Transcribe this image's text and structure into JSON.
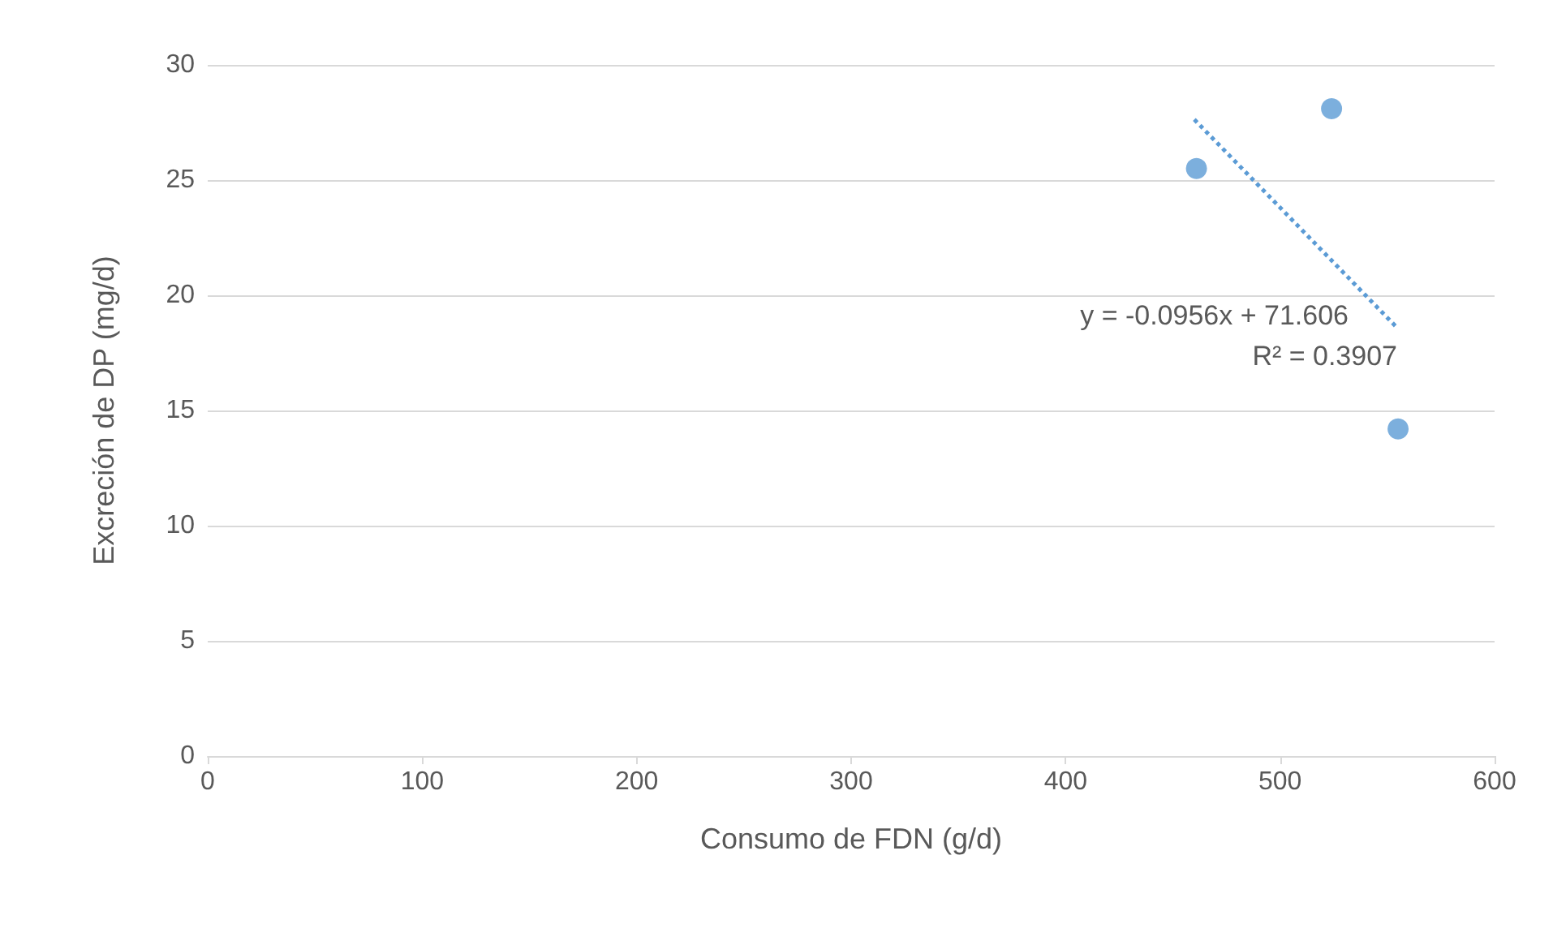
{
  "chart_data": {
    "type": "scatter",
    "xlabel": "Consumo de FDN (g/d)",
    "ylabel": "Excreción de DP (mg/d)",
    "xlim": [
      0,
      600
    ],
    "xticks": [
      0,
      100,
      200,
      300,
      400,
      500,
      600
    ],
    "ylim": [
      0,
      30
    ],
    "yticks": [
      0,
      5,
      10,
      15,
      20,
      25,
      30
    ],
    "grid": "y",
    "marker": "circle",
    "series": [
      {
        "color": "#5b9bd5",
        "x": [
          461,
          524,
          555
        ],
        "values": [
          25.5,
          28.1,
          14.2
        ]
      },
      {
        "type": "line",
        "color": "#5b9bd5",
        "line_style": "dotted",
        "marker": "none",
        "x": [
          460,
          555
        ],
        "values": [
          27.63,
          18.55
        ]
      }
    ],
    "annotations": [
      "y = -0.0956x + 71.606",
      "R² = 0.3907"
    ]
  }
}
